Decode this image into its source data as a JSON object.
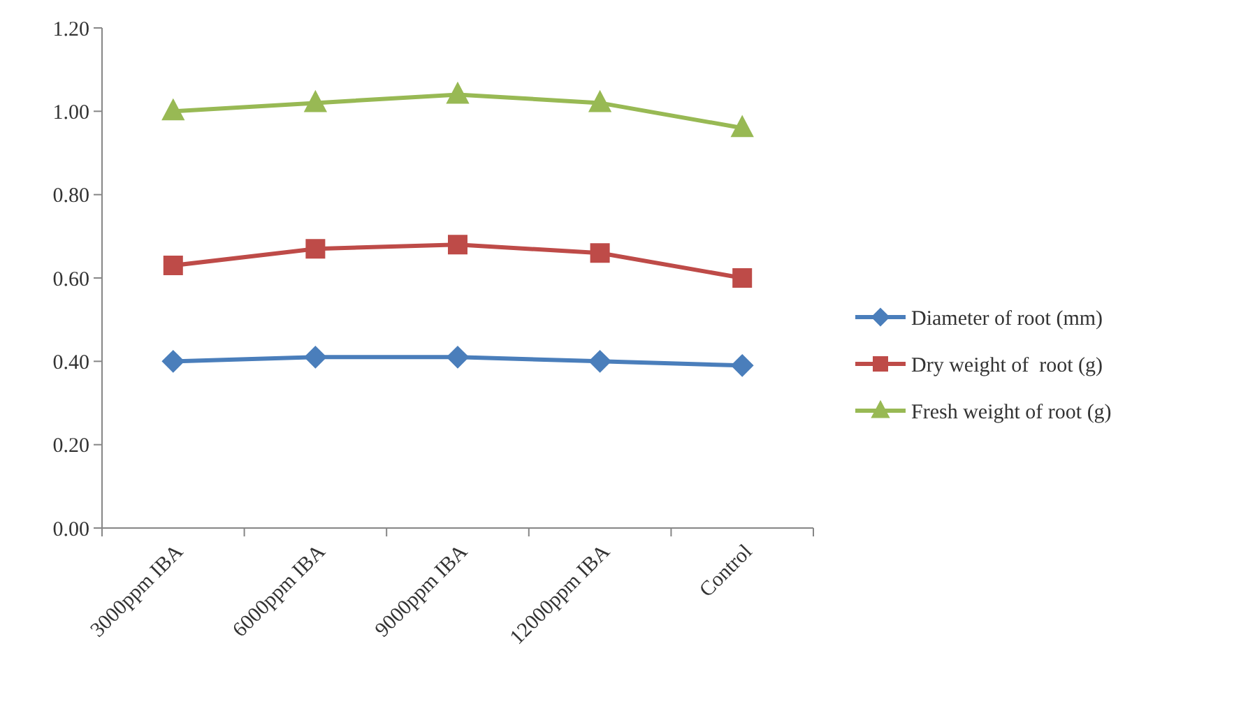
{
  "chart_data": {
    "type": "line",
    "categories": [
      "3000ppm IBA",
      "6000ppm IBA",
      "9000ppm IBA",
      "12000ppm IBA",
      "Control"
    ],
    "series": [
      {
        "name": "Diameter of root (mm)",
        "color": "#4a7ebb",
        "marker": "diamond",
        "values": [
          0.4,
          0.41,
          0.41,
          0.4,
          0.39
        ]
      },
      {
        "name": "Dry weight of  root (g)",
        "color": "#be4b48",
        "marker": "square",
        "values": [
          0.63,
          0.67,
          0.68,
          0.66,
          0.6
        ]
      },
      {
        "name": "Fresh weight of root (g)",
        "color": "#98b954",
        "marker": "triangle",
        "values": [
          1.0,
          1.02,
          1.04,
          1.02,
          0.96
        ]
      }
    ],
    "ylim": [
      0,
      1.2
    ],
    "yticks": [
      {
        "value": 0,
        "label": "0.00"
      },
      {
        "value": 0.2,
        "label": "0.20"
      },
      {
        "value": 0.4,
        "label": "0.40"
      },
      {
        "value": 0.6,
        "label": "0.60"
      },
      {
        "value": 0.8,
        "label": "0.80"
      },
      {
        "value": 1,
        "label": "1.00"
      },
      {
        "value": 1.2,
        "label": "1.20"
      }
    ],
    "legend": "right",
    "grid": false,
    "line_style": "solid"
  }
}
